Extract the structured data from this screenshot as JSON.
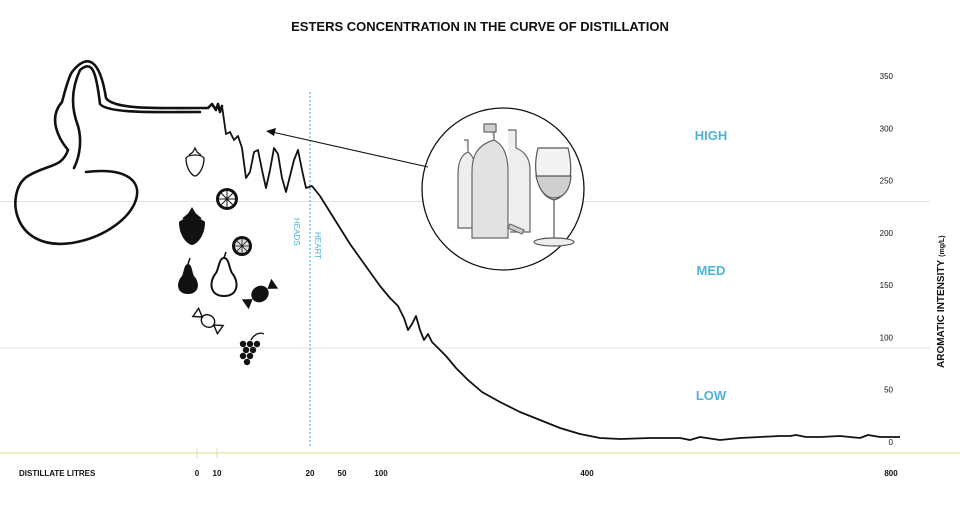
{
  "chart_data": {
    "type": "line",
    "title": "ESTERS CONCENTRATION IN THE CURVE OF DISTILLATION",
    "xlabel": "DISTILLATE LITRES",
    "ylabel": "AROMATIC INTENSITY",
    "ylabel_unit": "(mg/L)",
    "ylim": [
      0,
      350
    ],
    "y_ticks": [
      0,
      50,
      100,
      150,
      200,
      250,
      300,
      350
    ],
    "x_ticks": [
      "0",
      "10",
      "20",
      "50",
      "100",
      "400",
      "800"
    ],
    "bands": [
      {
        "label": "HIGH",
        "from": 230,
        "to": 350
      },
      {
        "label": "MED",
        "from": 90,
        "to": 230
      },
      {
        "label": "LOW",
        "from": 0,
        "to": 90
      }
    ],
    "band_boundaries": [
      230,
      90
    ],
    "phases": [
      {
        "label": "HEADS"
      },
      {
        "label": "HEART",
        "starts_at": "20"
      }
    ],
    "curve_color": "#111111",
    "accent_color": "#4fb3d9",
    "axis_color": "#e8dfa0",
    "illustrations": [
      "pot-still",
      "fruit-and-candy-icons",
      "bottles-and-glass",
      "pointer-arrow"
    ]
  }
}
